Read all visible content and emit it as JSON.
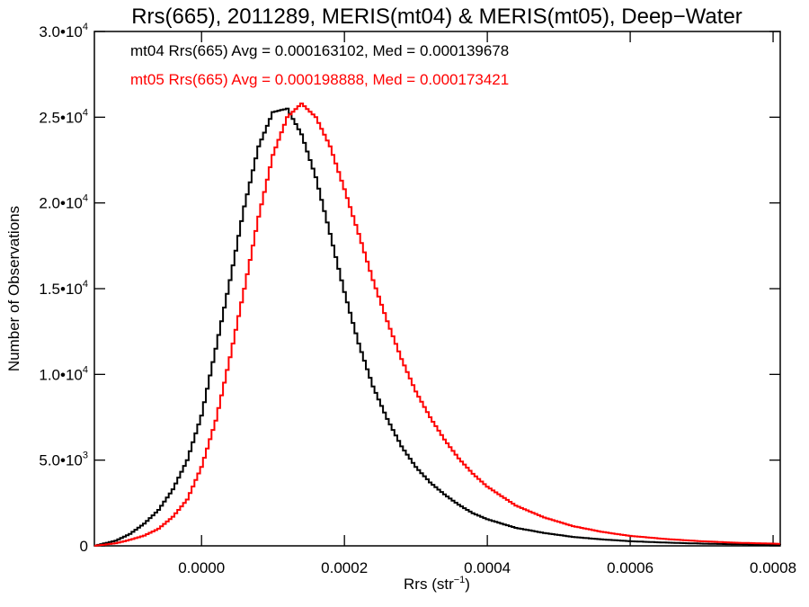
{
  "chart_data": {
    "type": "line",
    "title": "Rrs(665), 2011289, MERIS(mt04) & MERIS(mt05), Deep−Water",
    "xlabel_main": "Rrs (str",
    "xlabel_sup": "−1",
    "xlabel_close": ")",
    "ylabel": "Number of Observations",
    "xlim": [
      -0.00015,
      0.00081
    ],
    "ylim": [
      0,
      30000
    ],
    "x_ticks": [
      {
        "value": 0.0,
        "label": "0.0000"
      },
      {
        "value": 0.0002,
        "label": "0.0002"
      },
      {
        "value": 0.0004,
        "label": "0.0004"
      },
      {
        "value": 0.0006,
        "label": "0.0006"
      },
      {
        "value": 0.0008,
        "label": "0.0008"
      }
    ],
    "y_ticks": [
      {
        "value": 0,
        "mant": "0",
        "exp": ""
      },
      {
        "value": 5000,
        "mant": "5.0•10",
        "exp": "3"
      },
      {
        "value": 10000,
        "mant": "1.0•10",
        "exp": "4"
      },
      {
        "value": 15000,
        "mant": "1.5•10",
        "exp": "4"
      },
      {
        "value": 20000,
        "mant": "2.0•10",
        "exp": "4"
      },
      {
        "value": 25000,
        "mant": "2.5•10",
        "exp": "4"
      },
      {
        "value": 30000,
        "mant": "3.0•10",
        "exp": "4"
      }
    ],
    "grid": false,
    "legend_position": "top-left",
    "series": [
      {
        "name": "mt04",
        "color": "#000000",
        "legend": "mt04 Rrs(665) Avg = 0.000163102, Med = 0.000139678",
        "points": [
          [
            -0.00015,
            0
          ],
          [
            -0.00012,
            300
          ],
          [
            -0.0001,
            700
          ],
          [
            -8e-05,
            1300
          ],
          [
            -6e-05,
            2100
          ],
          [
            -4e-05,
            3300
          ],
          [
            -2e-05,
            5000
          ],
          [
            0.0,
            7600
          ],
          [
            2e-05,
            11500
          ],
          [
            4e-05,
            15500
          ],
          [
            6e-05,
            19800
          ],
          [
            8e-05,
            23300
          ],
          [
            0.0001,
            25300
          ],
          [
            0.00012,
            25500
          ],
          [
            0.00014,
            24000
          ],
          [
            0.00016,
            21500
          ],
          [
            0.00018,
            18200
          ],
          [
            0.0002,
            14800
          ],
          [
            0.00022,
            11800
          ],
          [
            0.00024,
            9300
          ],
          [
            0.00026,
            7400
          ],
          [
            0.00028,
            5800
          ],
          [
            0.0003,
            4600
          ],
          [
            0.00032,
            3700
          ],
          [
            0.00034,
            3000
          ],
          [
            0.00036,
            2400
          ],
          [
            0.00038,
            1900
          ],
          [
            0.0004,
            1550
          ],
          [
            0.00044,
            1050
          ],
          [
            0.00048,
            750
          ],
          [
            0.00052,
            520
          ],
          [
            0.00056,
            380
          ],
          [
            0.0006,
            270
          ],
          [
            0.00065,
            190
          ],
          [
            0.0007,
            130
          ],
          [
            0.00075,
            90
          ],
          [
            0.00081,
            60
          ]
        ]
      },
      {
        "name": "mt05",
        "color": "#ff0000",
        "legend": "mt05 Rrs(665) Avg = 0.000198888, Med = 0.000173421",
        "points": [
          [
            -0.00015,
            0
          ],
          [
            -0.00012,
            150
          ],
          [
            -0.0001,
            350
          ],
          [
            -8e-05,
            600
          ],
          [
            -6e-05,
            1000
          ],
          [
            -4e-05,
            1700
          ],
          [
            -2e-05,
            2700
          ],
          [
            0.0,
            4600
          ],
          [
            2e-05,
            7300
          ],
          [
            4e-05,
            11000
          ],
          [
            6e-05,
            15000
          ],
          [
            8e-05,
            19200
          ],
          [
            0.0001,
            22800
          ],
          [
            0.00012,
            25000
          ],
          [
            0.00014,
            25800
          ],
          [
            0.00016,
            25000
          ],
          [
            0.00018,
            23300
          ],
          [
            0.0002,
            20800
          ],
          [
            0.00022,
            18200
          ],
          [
            0.00024,
            15500
          ],
          [
            0.00026,
            13100
          ],
          [
            0.00028,
            10900
          ],
          [
            0.0003,
            9000
          ],
          [
            0.00032,
            7500
          ],
          [
            0.00034,
            6200
          ],
          [
            0.00036,
            5100
          ],
          [
            0.00038,
            4200
          ],
          [
            0.0004,
            3450
          ],
          [
            0.00044,
            2350
          ],
          [
            0.00048,
            1650
          ],
          [
            0.00052,
            1150
          ],
          [
            0.00056,
            820
          ],
          [
            0.0006,
            580
          ],
          [
            0.00065,
            400
          ],
          [
            0.0007,
            270
          ],
          [
            0.00075,
            180
          ],
          [
            0.00081,
            120
          ]
        ]
      }
    ]
  }
}
